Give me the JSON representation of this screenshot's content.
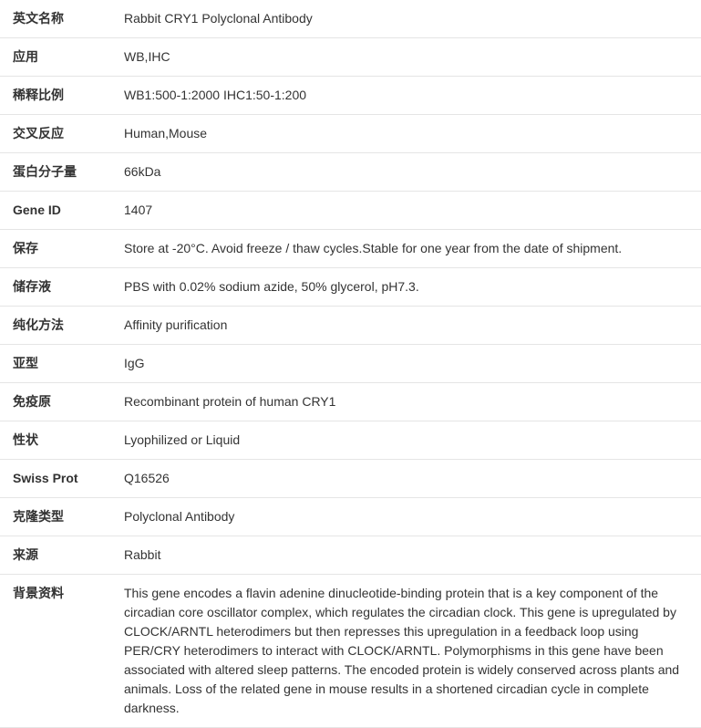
{
  "table": {
    "border_color": "#e5e5e5",
    "text_color": "#333333",
    "label_font_weight": "bold",
    "font_size": 14,
    "label_width": 128,
    "rows": [
      {
        "label": "英文名称",
        "value": "Rabbit CRY1 Polyclonal Antibody"
      },
      {
        "label": "应用",
        "value": "WB,IHC"
      },
      {
        "label": "稀释比例",
        "value": "WB1:500-1:2000 IHC1:50-1:200"
      },
      {
        "label": "交叉反应",
        "value": "Human,Mouse"
      },
      {
        "label": "蛋白分子量",
        "value": "66kDa"
      },
      {
        "label": "Gene ID",
        "value": "1407"
      },
      {
        "label": "保存",
        "value": "Store at -20°C. Avoid freeze / thaw cycles.Stable for one year from the date of shipment."
      },
      {
        "label": "储存液",
        "value": "PBS with 0.02% sodium azide, 50% glycerol, pH7.3."
      },
      {
        "label": "纯化方法",
        "value": "Affinity purification"
      },
      {
        "label": "亚型",
        "value": "IgG"
      },
      {
        "label": "免疫原",
        "value": "Recombinant protein of human CRY1"
      },
      {
        "label": "性状",
        "value": "Lyophilized or Liquid"
      },
      {
        "label": "Swiss Prot",
        "value": "Q16526"
      },
      {
        "label": "克隆类型",
        "value": "Polyclonal Antibody"
      },
      {
        "label": "来源",
        "value": "Rabbit"
      },
      {
        "label": "背景资料",
        "value": "This gene encodes a flavin adenine dinucleotide-binding protein that is a key component of the circadian core oscillator complex, which regulates the circadian clock. This gene is upregulated by CLOCK/ARNTL heterodimers but then represses this upregulation in a feedback loop using PER/CRY heterodimers to interact with CLOCK/ARNTL. Polymorphisms in this gene have been associated with altered sleep patterns. The encoded protein is widely conserved across plants and animals. Loss of the related gene in mouse results in a shortened circadian cycle in complete darkness."
      }
    ]
  }
}
